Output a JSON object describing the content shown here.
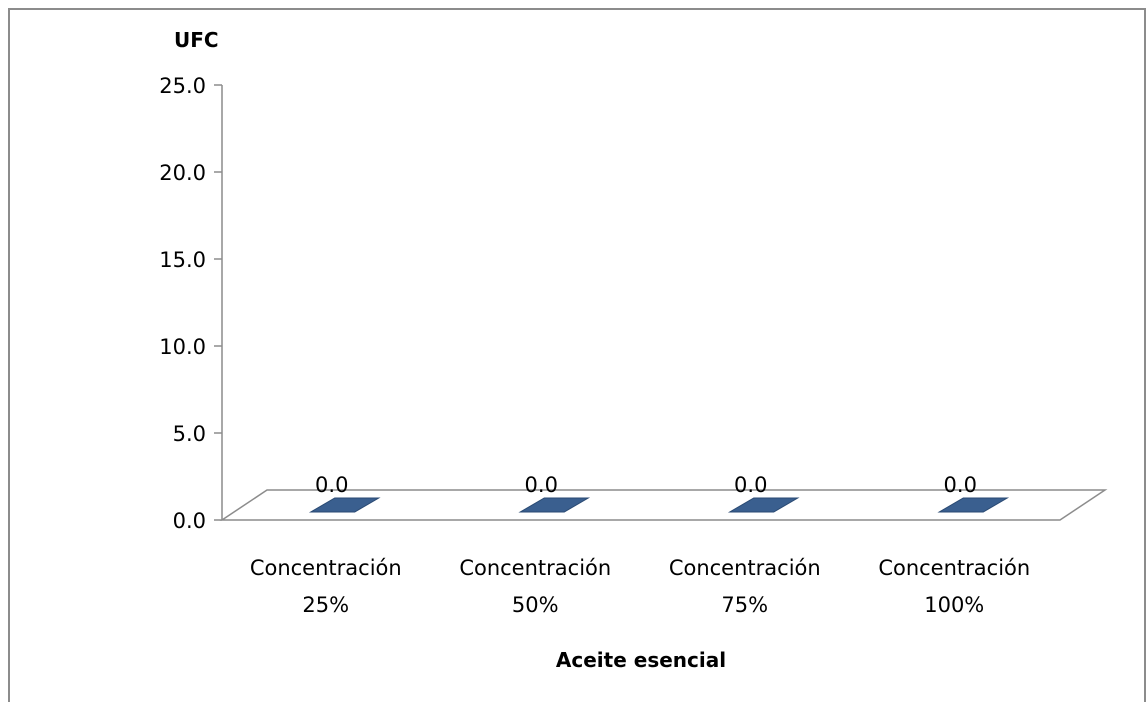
{
  "chart_data": {
    "type": "bar",
    "style": "3d-column",
    "categories": [
      "Concentración 25%",
      "Concentración 50%",
      "Concentración 75%",
      "Concentración 100%"
    ],
    "category_lines": [
      [
        "Concentración",
        "25%"
      ],
      [
        "Concentración",
        "50%"
      ],
      [
        "Concentración",
        "75%"
      ],
      [
        "Concentración",
        "100%"
      ]
    ],
    "values": [
      0.0,
      0.0,
      0.0,
      0.0
    ],
    "data_labels": [
      "0.0",
      "0.0",
      "0.0",
      "0.0"
    ],
    "title": "",
    "ylabel": "UFC",
    "xlabel": "Aceite esencial",
    "ylim": [
      0,
      25
    ],
    "yticks": [
      0,
      5,
      10,
      15,
      20,
      25
    ],
    "ytick_labels": [
      "0.0",
      "5.0",
      "10.0",
      "15.0",
      "20.0",
      "25.0"
    ],
    "grid": false,
    "legend": "none",
    "bar_color": "#3a5f8f",
    "bar_edge_color": "#2a4a73"
  }
}
